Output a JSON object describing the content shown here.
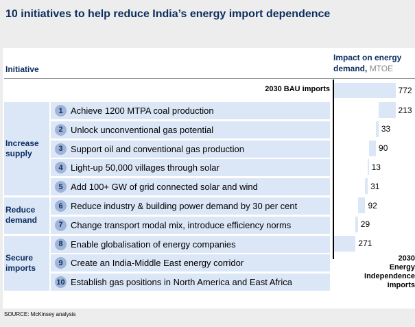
{
  "title": "10 initiatives to help reduce India’s energy import dependence",
  "header": {
    "initiative": "Initiative",
    "impact_line1": "Impact on energy",
    "impact_line2": "demand,",
    "impact_unit": "MTOE"
  },
  "chart_data": {
    "type": "bar",
    "subtype": "waterfall",
    "value_unit": "MTOE",
    "start": {
      "label": "2030 BAU imports",
      "value": 772
    },
    "groups": [
      {
        "label": "Increase supply",
        "items": [
          1,
          2,
          3,
          4,
          5
        ]
      },
      {
        "label": "Reduce demand",
        "items": [
          6,
          7
        ]
      },
      {
        "label": "Secure imports",
        "items": [
          8,
          9,
          10
        ]
      }
    ],
    "initiatives": [
      {
        "num": "1",
        "label": "Achieve 1200 MTPA coal production",
        "value": 213
      },
      {
        "num": "2",
        "label": "Unlock unconventional gas potential",
        "value": 33
      },
      {
        "num": "3",
        "label": "Support oil and conventional gas production",
        "value": 90
      },
      {
        "num": "4",
        "label": "Light-up 50,000 villages through solar",
        "value": 13
      },
      {
        "num": "5",
        "label": "Add 100+ GW of grid connected solar and wind",
        "value": 31
      },
      {
        "num": "6",
        "label": "Reduce industry & building power demand by 30 per cent",
        "value": 92
      },
      {
        "num": "7",
        "label": "Change transport modal mix, introduce efficiency norms",
        "value": 29
      },
      {
        "num": "8",
        "label": "Enable globalisation of energy companies",
        "value": 271
      },
      {
        "num": "9",
        "label": "Create an India-Middle East energy corridor",
        "value": null
      },
      {
        "num": "10",
        "label": "Establish gas positions in North America and East Africa",
        "value": null
      }
    ],
    "end": {
      "label_lines": [
        "2030",
        "Energy",
        "Independence",
        "imports"
      ],
      "value": 0
    },
    "bar_color": "#dbe6f6"
  },
  "source": "SOURCE: McKinsey analysis"
}
